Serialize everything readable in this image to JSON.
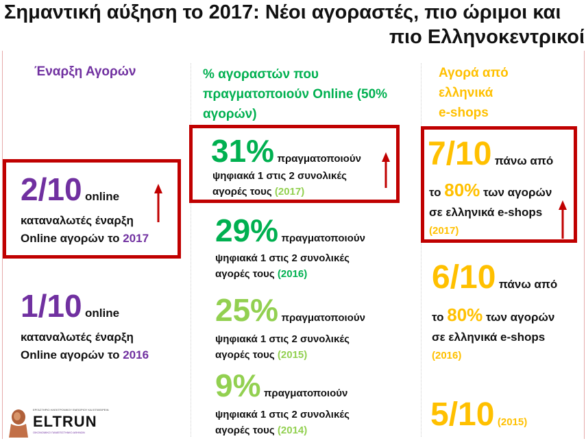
{
  "title": {
    "line1": "Σημαντική αύξηση το 2017: Νέοι αγοραστές, πιο ώριμοι και",
    "line2": "πιο Ελληνοκεντρικοί"
  },
  "col1": {
    "header": "Έναρξη Αγορών",
    "items": [
      {
        "value": "2/10",
        "word": "online",
        "text": "καταναλωτές έναρξη",
        "text2": "Online αγορών το",
        "year": "2017"
      },
      {
        "value": "1/10",
        "word": "online",
        "text": "καταναλωτές έναρξη",
        "text2": "Online αγορών το",
        "year": "2016"
      }
    ]
  },
  "col2": {
    "header_line1": "% αγοραστών που",
    "header_line2": "πραγματοποιούν Online (50%",
    "header_line3": "αγορών)",
    "items": [
      {
        "value": "31%",
        "word": "πραγματοποιούν",
        "text": "ψηφιακά 1 στις 2 συνολικές",
        "text2": "αγορές τους",
        "year": "(2017)"
      },
      {
        "value": "29%",
        "word": "πραγματοποιούν",
        "text": "ψηφιακά 1 στις 2 συνολικές",
        "text2": "αγορές τους",
        "year": "(2016)"
      },
      {
        "value": "25%",
        "word": "πραγματοποιούν",
        "text": "ψηφιακά 1 στις 2 συνολικές",
        "text2": "αγορές τους",
        "year": "(2015)"
      },
      {
        "value": "9%",
        "word": "πραγματοποιούν",
        "text": "ψηφιακά 1 στις 2 συνολικές",
        "text2": "αγορές τους",
        "year": "(2014)"
      }
    ]
  },
  "col3": {
    "header_line1": "Αγορά από",
    "header_line2": "ελληνικά",
    "header_line3": "e-shops",
    "items": [
      {
        "value": "7/10",
        "word": "πάνω από",
        "pre": "το",
        "pct": "80%",
        "post": "των αγορών",
        "text2": "σε ελληνικά e-shops",
        "year": "(2017)"
      },
      {
        "value": "6/10",
        "word": "πάνω από",
        "pre": "το",
        "pct": "80%",
        "post": "των αγορών",
        "text2": "σε ελληνικά e-shops",
        "year": "(2016)"
      },
      {
        "value": "5/10",
        "year": "(2015)"
      }
    ]
  },
  "logo": {
    "top_text": "ΕΡΓΑΣΤΗΡΙΟ ΗΛΕΚΤΡΟΝΙΚΟΥ ΕΜΠΟΡΙΟΥ ΚΑΙ ΕΠΙΧΕΙΡΕΙΝ",
    "name": "ELTRUN",
    "sub_text": "ΟΙΚΟΝΟΜΙΚΟ ΠΑΝΕΠΙΣΤΗΜΙΟ ΑΘΗΝΩΝ"
  },
  "colors": {
    "purple": "#7030a0",
    "green": "#00b050",
    "light_green": "#92d050",
    "orange": "#ffc000",
    "highlight_red": "#c00000"
  }
}
